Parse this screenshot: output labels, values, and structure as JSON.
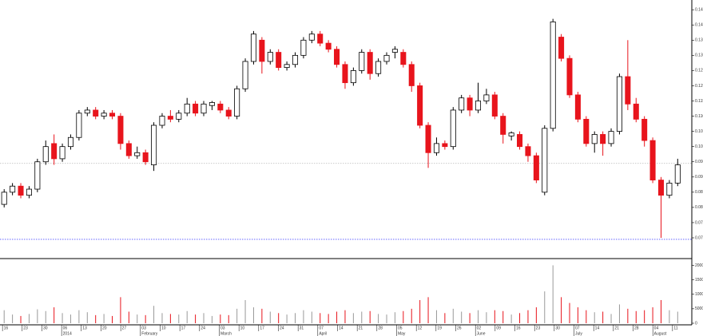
{
  "chart_data": [
    {
      "type": "candlestick",
      "up_color": "#ffffff",
      "down_color": "#e8141c",
      "outline_color": "#000000",
      "ylim": [
        0.0637,
        0.1482
      ],
      "yticks": [
        {
          "value": 0.07,
          "label": "0.070"
        },
        0.075,
        {
          "value": 0.08,
          "label": "0.080"
        },
        0.085,
        {
          "value": 0.09,
          "label": "0.090"
        },
        0.095,
        {
          "value": 0.1,
          "label": "0.100"
        },
        0.105,
        {
          "value": 0.11,
          "label": "0.110"
        },
        0.115,
        {
          "value": 0.12,
          "label": "0.120"
        },
        0.125,
        {
          "value": 0.13,
          "label": "0.130"
        },
        0.135,
        {
          "value": 0.14,
          "label": "0.140"
        },
        0.145
      ],
      "reference_lines": [
        {
          "value": 0.0945,
          "color": "#cccccc"
        },
        {
          "value": 0.0695,
          "color": "#6666ff"
        }
      ],
      "ohlc": [
        [
          0.081,
          0.086,
          0.08,
          0.085
        ],
        [
          0.085,
          0.088,
          0.084,
          0.087
        ],
        [
          0.087,
          0.088,
          0.083,
          0.084
        ],
        [
          0.084,
          0.087,
          0.083,
          0.086
        ],
        [
          0.086,
          0.096,
          0.085,
          0.095
        ],
        [
          0.095,
          0.102,
          0.094,
          0.1
        ],
        [
          0.101,
          0.104,
          0.094,
          0.096
        ],
        [
          0.096,
          0.101,
          0.095,
          0.1
        ],
        [
          0.1,
          0.104,
          0.099,
          0.103
        ],
        [
          0.103,
          0.112,
          0.102,
          0.111
        ],
        [
          0.111,
          0.113,
          0.11,
          0.112
        ],
        [
          0.112,
          0.113,
          0.109,
          0.11
        ],
        [
          0.11,
          0.112,
          0.109,
          0.111
        ],
        [
          0.111,
          0.112,
          0.109,
          0.11
        ],
        [
          0.11,
          0.111,
          0.099,
          0.101
        ],
        [
          0.101,
          0.102,
          0.096,
          0.097
        ],
        [
          0.097,
          0.1,
          0.096,
          0.098
        ],
        [
          0.098,
          0.099,
          0.094,
          0.095
        ],
        [
          0.094,
          0.108,
          0.092,
          0.107
        ],
        [
          0.107,
          0.111,
          0.106,
          0.11
        ],
        [
          0.11,
          0.112,
          0.108,
          0.109
        ],
        [
          0.109,
          0.112,
          0.108,
          0.111
        ],
        [
          0.111,
          0.116,
          0.11,
          0.114
        ],
        [
          0.114,
          0.115,
          0.11,
          0.111
        ],
        [
          0.111,
          0.115,
          0.11,
          0.114
        ],
        [
          0.1135,
          0.115,
          0.112,
          0.1145
        ],
        [
          0.114,
          0.115,
          0.111,
          0.112
        ],
        [
          0.112,
          0.113,
          0.109,
          0.11
        ],
        [
          0.11,
          0.12,
          0.109,
          0.119
        ],
        [
          0.119,
          0.129,
          0.118,
          0.128
        ],
        [
          0.128,
          0.138,
          0.127,
          0.137
        ],
        [
          0.135,
          0.136,
          0.124,
          0.128
        ],
        [
          0.128,
          0.132,
          0.127,
          0.131
        ],
        [
          0.131,
          0.132,
          0.125,
          0.126
        ],
        [
          0.126,
          0.128,
          0.125,
          0.127
        ],
        [
          0.127,
          0.131,
          0.126,
          0.13
        ],
        [
          0.13,
          0.136,
          0.129,
          0.135
        ],
        [
          0.135,
          0.138,
          0.134,
          0.137
        ],
        [
          0.137,
          0.138,
          0.133,
          0.134
        ],
        [
          0.134,
          0.135,
          0.131,
          0.132
        ],
        [
          0.132,
          0.133,
          0.126,
          0.127
        ],
        [
          0.127,
          0.128,
          0.119,
          0.121
        ],
        [
          0.121,
          0.126,
          0.12,
          0.125
        ],
        [
          0.125,
          0.132,
          0.124,
          0.131
        ],
        [
          0.131,
          0.132,
          0.122,
          0.124
        ],
        [
          0.124,
          0.129,
          0.123,
          0.128
        ],
        [
          0.128,
          0.131,
          0.127,
          0.13
        ],
        [
          0.131,
          0.133,
          0.129,
          0.132
        ],
        [
          0.131,
          0.132,
          0.126,
          0.127
        ],
        [
          0.127,
          0.128,
          0.118,
          0.12
        ],
        [
          0.12,
          0.121,
          0.106,
          0.107
        ],
        [
          0.107,
          0.108,
          0.093,
          0.098
        ],
        [
          0.098,
          0.103,
          0.097,
          0.101
        ],
        [
          0.101,
          0.102,
          0.099,
          0.1
        ],
        [
          0.1,
          0.113,
          0.099,
          0.112
        ],
        [
          0.112,
          0.117,
          0.111,
          0.116
        ],
        [
          0.116,
          0.117,
          0.11,
          0.112
        ],
        [
          0.112,
          0.121,
          0.111,
          0.115
        ],
        [
          0.115,
          0.119,
          0.114,
          0.117
        ],
        [
          0.117,
          0.118,
          0.109,
          0.11
        ],
        [
          0.11,
          0.111,
          0.101,
          0.104
        ],
        [
          0.1035,
          0.105,
          0.102,
          0.1045
        ],
        [
          0.104,
          0.105,
          0.099,
          0.1
        ],
        [
          0.1,
          0.101,
          0.095,
          0.097
        ],
        [
          0.097,
          0.098,
          0.088,
          0.089
        ],
        [
          0.085,
          0.107,
          0.084,
          0.106
        ],
        [
          0.106,
          0.142,
          0.105,
          0.141
        ],
        [
          0.136,
          0.137,
          0.128,
          0.129
        ],
        [
          0.129,
          0.13,
          0.116,
          0.117
        ],
        [
          0.117,
          0.118,
          0.108,
          0.109
        ],
        [
          0.109,
          0.11,
          0.1,
          0.101
        ],
        [
          0.101,
          0.105,
          0.098,
          0.104
        ],
        [
          0.104,
          0.105,
          0.097,
          0.101
        ],
        [
          0.101,
          0.106,
          0.1,
          0.105
        ],
        [
          0.105,
          0.124,
          0.104,
          0.123
        ],
        [
          0.123,
          0.135,
          0.112,
          0.114
        ],
        [
          0.114,
          0.116,
          0.108,
          0.109
        ],
        [
          0.109,
          0.11,
          0.1,
          0.102
        ],
        [
          0.102,
          0.103,
          0.088,
          0.089
        ],
        [
          0.089,
          0.09,
          0.07,
          0.084
        ],
        [
          0.084,
          0.089,
          0.083,
          0.088
        ],
        [
          0.088,
          0.096,
          0.087,
          0.094
        ]
      ]
    },
    {
      "type": "bar",
      "up_color": "#999999",
      "down_color": "#e8141c",
      "ylim": [
        0,
        21500
      ],
      "yticks": [
        0,
        5000,
        10000,
        15000,
        20000
      ],
      "values": [
        4500,
        3000,
        2500,
        3200,
        4800,
        4200,
        5500,
        3500,
        3000,
        4500,
        3800,
        2800,
        3200,
        2500,
        9000,
        4000,
        3000,
        2800,
        6000,
        3500,
        3200,
        3000,
        4200,
        3000,
        3500,
        2500,
        3000,
        2800,
        5000,
        8000,
        5500,
        5000,
        4000,
        3500,
        3000,
        3500,
        4500,
        4000,
        3500,
        3200,
        4000,
        4500,
        3500,
        4000,
        4200,
        3200,
        3000,
        3800,
        4200,
        5000,
        8000,
        9000,
        4500,
        3500,
        5000,
        4000,
        3500,
        4500,
        3800,
        4500,
        4200,
        3000,
        3500,
        4500,
        5500,
        11000,
        20000,
        9000,
        7000,
        5500,
        4500,
        3800,
        4000,
        3200,
        6500,
        5000,
        4200,
        4500,
        5500,
        8000,
        4500,
        4000
      ],
      "xlim": [
        -0.5,
        82.7
      ],
      "xticks": [
        {
          "value": -0.2,
          "label": "16"
        },
        {
          "value": 2.17,
          "label": "23"
        },
        {
          "value": 4.54,
          "label": "30"
        },
        {
          "value": 6.91,
          "label": "06"
        },
        {
          "value": 9.28,
          "label": "13"
        },
        {
          "value": 11.65,
          "label": "20"
        },
        {
          "value": 14.02,
          "label": "27"
        },
        {
          "value": 16.39,
          "label": "03"
        },
        {
          "value": 18.76,
          "label": "10"
        },
        {
          "value": 21.13,
          "label": "17"
        },
        {
          "value": 23.5,
          "label": "24"
        },
        {
          "value": 25.87,
          "label": "03"
        },
        {
          "value": 28.24,
          "label": "10"
        },
        {
          "value": 30.61,
          "label": "17"
        },
        {
          "value": 32.98,
          "label": "24"
        },
        {
          "value": 35.35,
          "label": "31"
        },
        {
          "value": 37.72,
          "label": "07"
        },
        {
          "value": 40.09,
          "label": "14"
        },
        {
          "value": 42.46,
          "label": "21"
        },
        {
          "value": 44.83,
          "label": "28"
        },
        {
          "value": 47.2,
          "label": "05"
        },
        {
          "value": 49.57,
          "label": "12"
        },
        {
          "value": 51.94,
          "label": "19"
        },
        {
          "value": 54.31,
          "label": "26"
        },
        {
          "value": 56.68,
          "label": "02"
        },
        {
          "value": 59.05,
          "label": "09"
        },
        {
          "value": 61.42,
          "label": "16"
        },
        {
          "value": 63.79,
          "label": "23"
        },
        {
          "value": 66.16,
          "label": "30"
        },
        {
          "value": 68.53,
          "label": "07"
        },
        {
          "value": 70.9,
          "label": "14"
        },
        {
          "value": 73.27,
          "label": "21"
        },
        {
          "value": 75.64,
          "label": "28"
        },
        {
          "value": 78.01,
          "label": "04"
        },
        {
          "value": 80.38,
          "label": "11"
        }
      ],
      "month_labels": [
        {
          "value": 6.91,
          "label": "2014"
        },
        {
          "value": 16.39,
          "label": "February"
        },
        {
          "value": 25.87,
          "label": "March"
        },
        {
          "value": 37.72,
          "label": "April"
        },
        {
          "value": 47.2,
          "label": "May"
        },
        {
          "value": 56.68,
          "label": "June"
        },
        {
          "value": 68.53,
          "label": "July"
        },
        {
          "value": 78.01,
          "label": "August"
        }
      ]
    }
  ]
}
